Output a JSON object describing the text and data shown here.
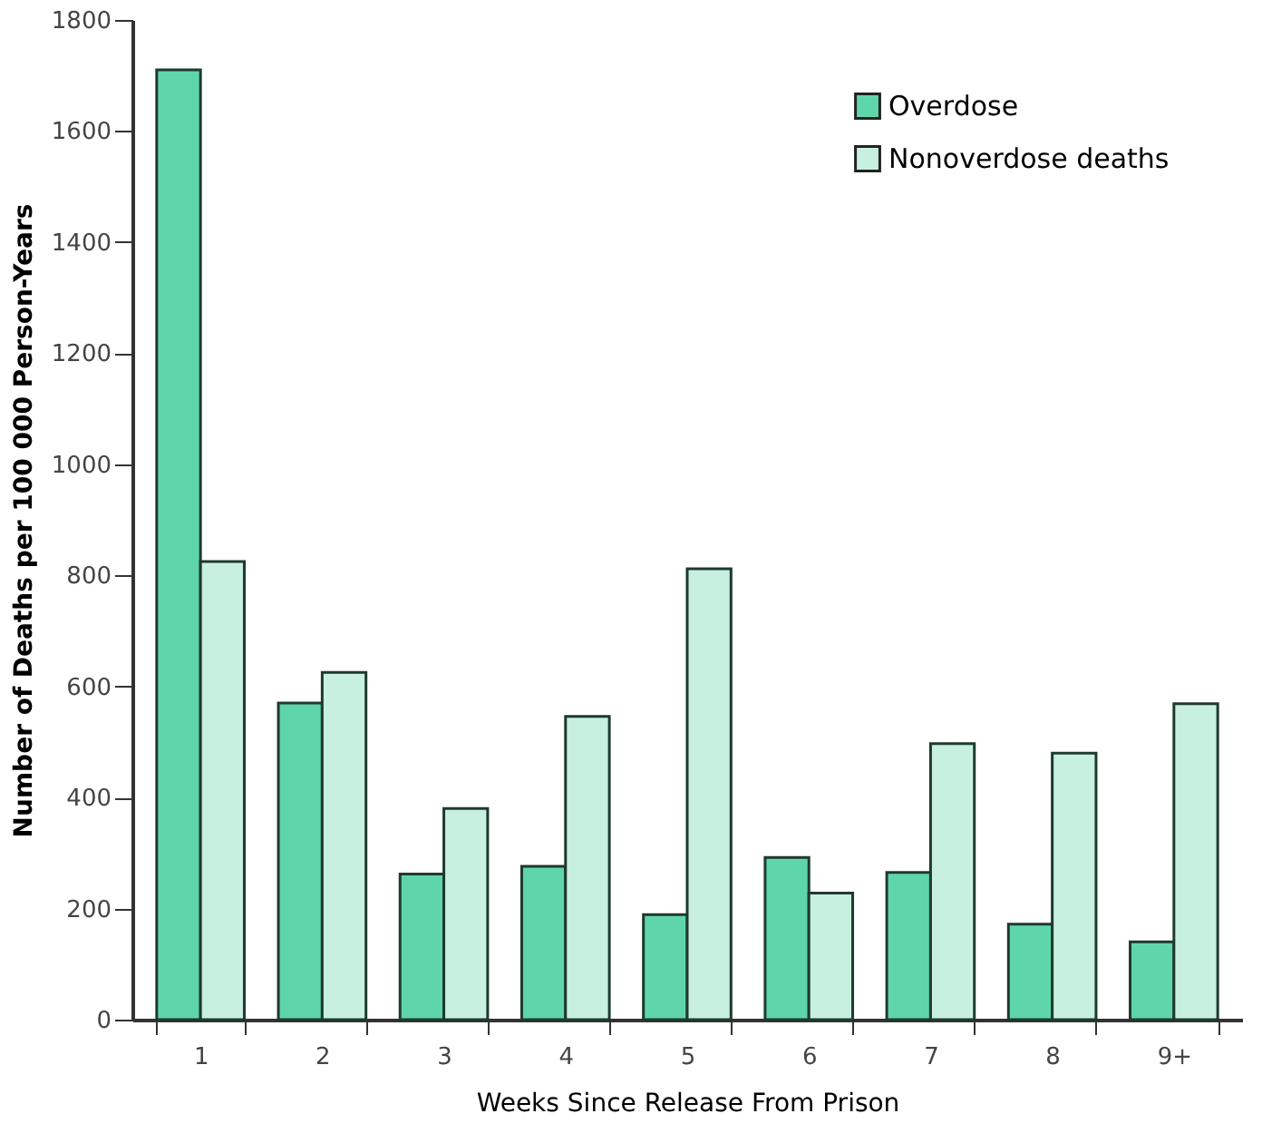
{
  "chart_data": {
    "type": "bar",
    "xlabel": "Weeks Since Release From Prison",
    "ylabel": "Number of Deaths per 100 000 Person-Years",
    "categories": [
      "1",
      "2",
      "3",
      "4",
      "5",
      "6",
      "7",
      "8",
      "9+"
    ],
    "series": [
      {
        "name": "Overdose",
        "color": "#5fd6a9",
        "values": [
          1710,
          570,
          262,
          276,
          189,
          292,
          265,
          172,
          140
        ]
      },
      {
        "name": "Nonoverdose deaths",
        "color": "#c8f0e0",
        "values": [
          825,
          625,
          380,
          546,
          812,
          228,
          497,
          480,
          569
        ]
      }
    ],
    "ylim": [
      0,
      1800
    ],
    "yticks": [
      0,
      200,
      400,
      600,
      800,
      1000,
      1200,
      1400,
      1600,
      1800
    ],
    "grid": false,
    "legend": "top right"
  }
}
